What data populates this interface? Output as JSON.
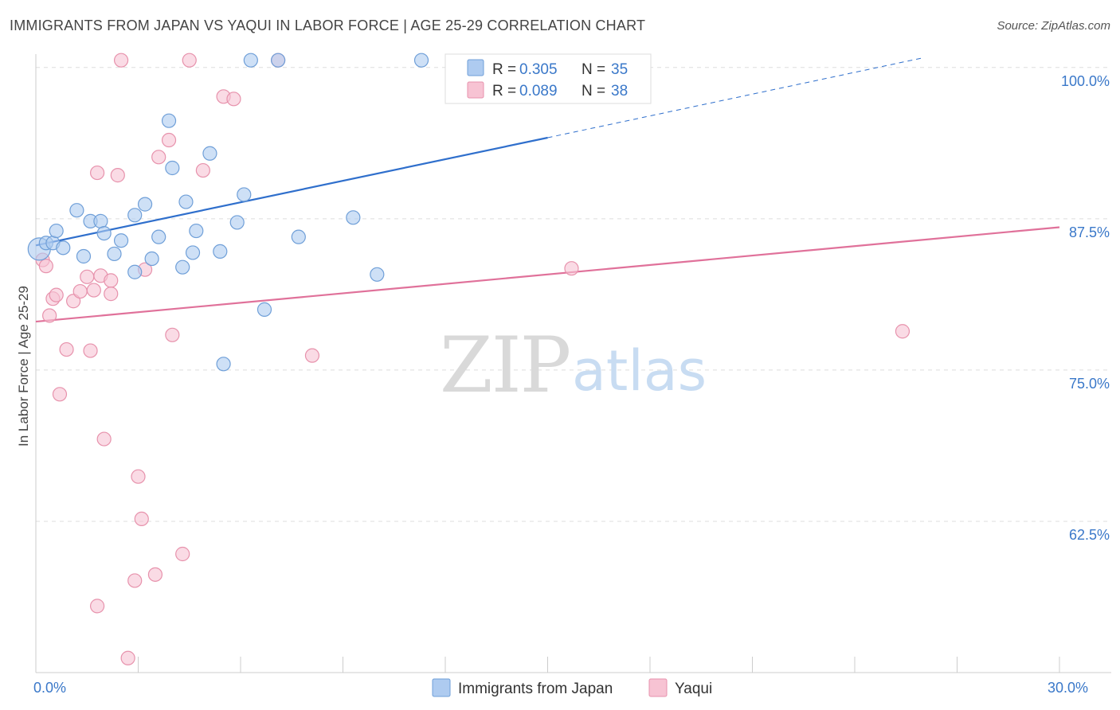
{
  "title": "IMMIGRANTS FROM JAPAN VS YAQUI IN LABOR FORCE | AGE 25-29 CORRELATION CHART",
  "source": "Source: ZipAtlas.com",
  "watermark": {
    "zip": "ZIP",
    "atlas": "atlas"
  },
  "colors": {
    "japan_fill": "#aecbf0",
    "japan_stroke": "#6f9fd8",
    "japan_line": "#2f6fcc",
    "yaqui_fill": "#f7c3d3",
    "yaqui_stroke": "#e792ac",
    "yaqui_line": "#e0719a",
    "grid": "#dddddd",
    "tick_text": "#3a78c9"
  },
  "legend": {
    "japan": {
      "r_label": "R = ",
      "r_value": "0.305",
      "n_label": "N = ",
      "n_value": "35"
    },
    "yaqui": {
      "r_label": "R = ",
      "r_value": "0.089",
      "n_label": "N = ",
      "n_value": "38"
    }
  },
  "bottom_legend": [
    "Immigrants from Japan",
    "Yaqui"
  ],
  "chart_data": {
    "type": "scatter",
    "title": "IMMIGRANTS FROM JAPAN VS YAQUI IN LABOR FORCE | AGE 25-29 CORRELATION CHART",
    "xlabel": "",
    "ylabel": "In Labor Force | Age 25-29",
    "xlim": [
      0,
      30
    ],
    "ylim": [
      50,
      101.5
    ],
    "x_tick_labels": [
      {
        "value": 0,
        "label": "0.0%"
      },
      {
        "value": 30,
        "label": "30.0%"
      }
    ],
    "y_tick_labels": [
      {
        "value": 100,
        "label": "100.0%"
      },
      {
        "value": 87.5,
        "label": "87.5%"
      },
      {
        "value": 75,
        "label": "75.0%"
      },
      {
        "value": 62.5,
        "label": "62.5%"
      }
    ],
    "x_ticks": [
      0,
      3,
      6,
      9,
      12,
      15,
      18,
      21,
      24,
      27,
      30
    ],
    "series": [
      {
        "name": "Immigrants from Japan",
        "color_key": "japan",
        "R": 0.305,
        "N": 35,
        "trend": {
          "x0": 0,
          "y0": 85.3,
          "x1": 15,
          "y1": 94.2,
          "dash_to_x": 26,
          "dash_to_y": 100.8
        },
        "points": [
          {
            "x": 0.1,
            "y": 85.0,
            "big": true
          },
          {
            "x": 0.3,
            "y": 85.5
          },
          {
            "x": 0.5,
            "y": 85.5
          },
          {
            "x": 0.6,
            "y": 86.5
          },
          {
            "x": 0.8,
            "y": 85.1
          },
          {
            "x": 1.2,
            "y": 88.2
          },
          {
            "x": 1.4,
            "y": 84.4
          },
          {
            "x": 1.6,
            "y": 87.3
          },
          {
            "x": 1.9,
            "y": 87.3
          },
          {
            "x": 2.0,
            "y": 86.3
          },
          {
            "x": 2.3,
            "y": 84.6
          },
          {
            "x": 2.5,
            "y": 85.7
          },
          {
            "x": 2.9,
            "y": 87.8
          },
          {
            "x": 2.9,
            "y": 83.1
          },
          {
            "x": 3.2,
            "y": 88.7
          },
          {
            "x": 3.4,
            "y": 84.2
          },
          {
            "x": 3.6,
            "y": 86.0
          },
          {
            "x": 3.9,
            "y": 95.6
          },
          {
            "x": 4.0,
            "y": 91.7
          },
          {
            "x": 4.3,
            "y": 83.5
          },
          {
            "x": 4.4,
            "y": 88.9
          },
          {
            "x": 4.6,
            "y": 84.7
          },
          {
            "x": 4.7,
            "y": 86.5
          },
          {
            "x": 5.1,
            "y": 92.9
          },
          {
            "x": 5.4,
            "y": 84.8
          },
          {
            "x": 5.5,
            "y": 75.5
          },
          {
            "x": 5.9,
            "y": 87.2
          },
          {
            "x": 6.1,
            "y": 89.5
          },
          {
            "x": 6.3,
            "y": 100.6
          },
          {
            "x": 6.7,
            "y": 80.0
          },
          {
            "x": 7.1,
            "y": 100.6
          },
          {
            "x": 7.7,
            "y": 86.0
          },
          {
            "x": 9.3,
            "y": 87.6
          },
          {
            "x": 10.0,
            "y": 82.9
          },
          {
            "x": 11.3,
            "y": 100.6
          }
        ]
      },
      {
        "name": "Yaqui",
        "color_key": "yaqui",
        "R": 0.089,
        "N": 38,
        "trend": {
          "x0": 0,
          "y0": 79.0,
          "x1": 30,
          "y1": 86.8
        },
        "points": [
          {
            "x": 0.2,
            "y": 84.1
          },
          {
            "x": 0.3,
            "y": 83.6
          },
          {
            "x": 0.4,
            "y": 79.5
          },
          {
            "x": 0.5,
            "y": 80.9
          },
          {
            "x": 0.6,
            "y": 81.2
          },
          {
            "x": 0.7,
            "y": 73.0
          },
          {
            "x": 0.9,
            "y": 76.7
          },
          {
            "x": 1.1,
            "y": 80.7
          },
          {
            "x": 1.3,
            "y": 81.5
          },
          {
            "x": 1.5,
            "y": 82.7
          },
          {
            "x": 1.6,
            "y": 76.6
          },
          {
            "x": 1.7,
            "y": 81.6
          },
          {
            "x": 1.8,
            "y": 55.5
          },
          {
            "x": 1.8,
            "y": 91.3
          },
          {
            "x": 1.9,
            "y": 82.8
          },
          {
            "x": 2.0,
            "y": 69.3
          },
          {
            "x": 2.2,
            "y": 82.4
          },
          {
            "x": 2.2,
            "y": 81.3
          },
          {
            "x": 2.4,
            "y": 91.1
          },
          {
            "x": 2.5,
            "y": 100.6
          },
          {
            "x": 2.7,
            "y": 51.2
          },
          {
            "x": 2.9,
            "y": 57.6
          },
          {
            "x": 3.0,
            "y": 66.2
          },
          {
            "x": 3.1,
            "y": 62.7
          },
          {
            "x": 3.2,
            "y": 83.3
          },
          {
            "x": 3.5,
            "y": 58.1
          },
          {
            "x": 3.6,
            "y": 92.6
          },
          {
            "x": 3.9,
            "y": 94.0
          },
          {
            "x": 4.0,
            "y": 77.9
          },
          {
            "x": 4.3,
            "y": 59.8
          },
          {
            "x": 4.5,
            "y": 100.6
          },
          {
            "x": 4.9,
            "y": 91.5
          },
          {
            "x": 5.5,
            "y": 97.6
          },
          {
            "x": 5.8,
            "y": 97.4
          },
          {
            "x": 7.1,
            "y": 100.6
          },
          {
            "x": 8.1,
            "y": 76.2
          },
          {
            "x": 15.7,
            "y": 83.4
          },
          {
            "x": 25.4,
            "y": 78.2
          }
        ]
      }
    ]
  }
}
